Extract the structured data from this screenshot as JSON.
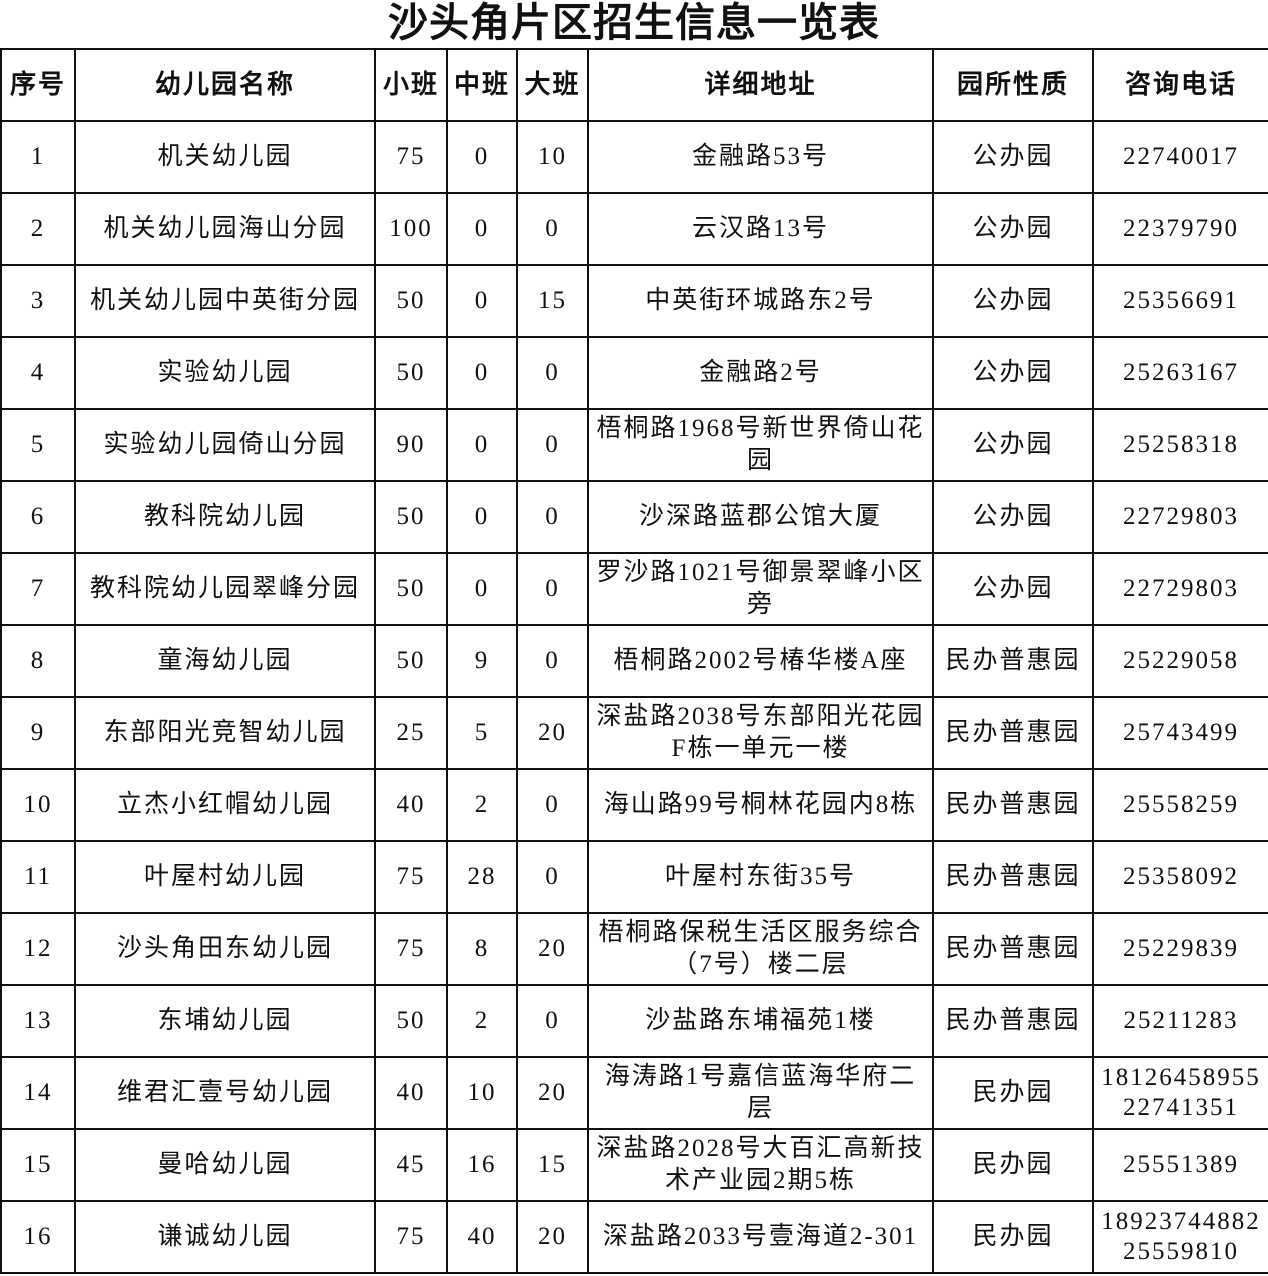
{
  "title": "沙头角片区招生信息一览表",
  "headers": [
    "序号",
    "幼儿园名称",
    "小班",
    "中班",
    "大班",
    "详细地址",
    "园所性质",
    "咨询电话"
  ],
  "rows": [
    {
      "no": "1",
      "name": "机关幼儿园",
      "small": "75",
      "middle": "0",
      "large": "10",
      "address": "金融路53号",
      "type": "公办园",
      "phones": [
        "22740017"
      ]
    },
    {
      "no": "2",
      "name": "机关幼儿园海山分园",
      "small": "100",
      "middle": "0",
      "large": "0",
      "address": "云汉路13号",
      "type": "公办园",
      "phones": [
        "22379790"
      ]
    },
    {
      "no": "3",
      "name": "机关幼儿园中英街分园",
      "small": "50",
      "middle": "0",
      "large": "15",
      "address": "中英街环城路东2号",
      "type": "公办园",
      "phones": [
        "25356691"
      ]
    },
    {
      "no": "4",
      "name": "实验幼儿园",
      "small": "50",
      "middle": "0",
      "large": "0",
      "address": "金融路2号",
      "type": "公办园",
      "phones": [
        "25263167"
      ]
    },
    {
      "no": "5",
      "name": "实验幼儿园倚山分园",
      "small": "90",
      "middle": "0",
      "large": "0",
      "address": "梧桐路1968号新世界倚山花园",
      "type": "公办园",
      "phones": [
        "25258318"
      ]
    },
    {
      "no": "6",
      "name": "教科院幼儿园",
      "small": "50",
      "middle": "0",
      "large": "0",
      "address": "沙深路蓝郡公馆大厦",
      "type": "公办园",
      "phones": [
        "22729803"
      ]
    },
    {
      "no": "7",
      "name": "教科院幼儿园翠峰分园",
      "small": "50",
      "middle": "0",
      "large": "0",
      "address": "罗沙路1021号御景翠峰小区旁",
      "type": "公办园",
      "phones": [
        "22729803"
      ]
    },
    {
      "no": "8",
      "name": "童海幼儿园",
      "small": "50",
      "middle": "9",
      "large": "0",
      "address": "梧桐路2002号椿华楼A座",
      "type": "民办普惠园",
      "phones": [
        "25229058"
      ]
    },
    {
      "no": "9",
      "name": "东部阳光竞智幼儿园",
      "small": "25",
      "middle": "5",
      "large": "20",
      "address": "深盐路2038号东部阳光花园F栋一单元一楼",
      "type": "民办普惠园",
      "phones": [
        "25743499"
      ]
    },
    {
      "no": "10",
      "name": "立杰小红帽幼儿园",
      "small": "40",
      "middle": "2",
      "large": "0",
      "address": "海山路99号桐林花园内8栋",
      "type": "民办普惠园",
      "phones": [
        "25558259"
      ]
    },
    {
      "no": "11",
      "name": "叶屋村幼儿园",
      "small": "75",
      "middle": "28",
      "large": "0",
      "address": "叶屋村东街35号",
      "type": "民办普惠园",
      "phones": [
        "25358092"
      ]
    },
    {
      "no": "12",
      "name": "沙头角田东幼儿园",
      "small": "75",
      "middle": "8",
      "large": "20",
      "address": "梧桐路保税生活区服务综合（7号）楼二层",
      "type": "民办普惠园",
      "phones": [
        "25229839"
      ]
    },
    {
      "no": "13",
      "name": "东埔幼儿园",
      "small": "50",
      "middle": "2",
      "large": "0",
      "address": "沙盐路东埔福苑1楼",
      "type": "民办普惠园",
      "phones": [
        "25211283"
      ]
    },
    {
      "no": "14",
      "name": "维君汇壹号幼儿园",
      "small": "40",
      "middle": "10",
      "large": "20",
      "address": "海涛路1号嘉信蓝海华府二层",
      "type": "民办园",
      "phones": [
        "18126458955",
        "22741351"
      ]
    },
    {
      "no": "15",
      "name": "曼哈幼儿园",
      "small": "45",
      "middle": "16",
      "large": "15",
      "address": "深盐路2028号大百汇高新技术产业园2期5栋",
      "type": "民办园",
      "phones": [
        "25551389"
      ]
    },
    {
      "no": "16",
      "name": "谦诚幼儿园",
      "small": "75",
      "middle": "40",
      "large": "20",
      "address": "深盐路2033号壹海道2-301",
      "type": "民办园",
      "phones": [
        "18923744882",
        "25559810"
      ]
    }
  ]
}
